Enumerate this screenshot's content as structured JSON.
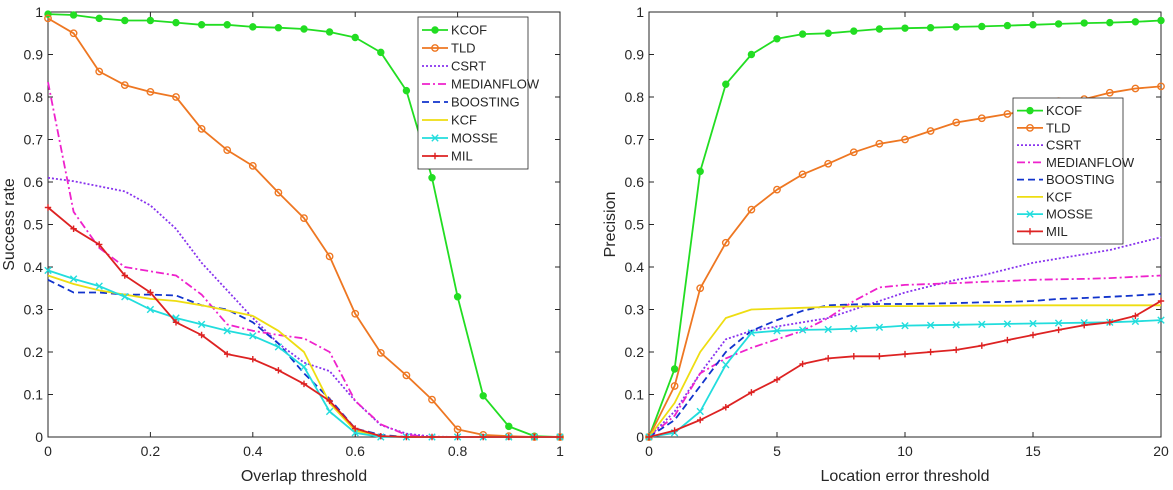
{
  "chart_data": [
    {
      "type": "line",
      "xlabel": "Overlap threshold",
      "ylabel": "Success rate",
      "xlim": [
        0,
        1
      ],
      "ylim": [
        0,
        1
      ],
      "xticks": [
        0,
        0.2,
        0.4,
        0.6,
        0.8,
        1
      ],
      "xtick_labels": [
        "0",
        "0.2",
        "0.4",
        "0.6",
        "0.8",
        "1"
      ],
      "yticks": [
        0,
        0.1,
        0.2,
        0.3,
        0.4,
        0.5,
        0.6,
        0.7,
        0.8,
        0.9,
        1
      ],
      "ytick_labels": [
        "0",
        "0.1",
        "0.2",
        "0.3",
        "0.4",
        "0.5",
        "0.6",
        "0.7",
        "0.8",
        "0.9",
        "1"
      ],
      "grid": false,
      "legend_position": "top-right",
      "x": [
        0,
        0.05,
        0.1,
        0.15,
        0.2,
        0.25,
        0.3,
        0.35,
        0.4,
        0.45,
        0.5,
        0.55,
        0.6,
        0.65,
        0.7,
        0.75,
        0.8,
        0.85,
        0.9,
        0.95,
        1
      ],
      "series": [
        {
          "name": "KCOF",
          "color": "#22dd22",
          "dash": "solid",
          "marker": "circle-filled",
          "values": [
            0.995,
            0.993,
            0.985,
            0.98,
            0.98,
            0.975,
            0.97,
            0.97,
            0.965,
            0.963,
            0.96,
            0.953,
            0.94,
            0.905,
            0.815,
            0.61,
            0.33,
            0.097,
            0.025,
            0.002,
            0
          ]
        },
        {
          "name": "TLD",
          "color": "#ee7722",
          "dash": "solid",
          "marker": "circle-open",
          "values": [
            0.985,
            0.95,
            0.86,
            0.828,
            0.812,
            0.8,
            0.725,
            0.675,
            0.638,
            0.575,
            0.515,
            0.425,
            0.29,
            0.198,
            0.145,
            0.088,
            0.018,
            0.005,
            0.002,
            0,
            0
          ]
        },
        {
          "name": "CSRT",
          "color": "#8833ee",
          "dash": "dotted",
          "marker": "none",
          "values": [
            0.61,
            0.602,
            0.59,
            0.578,
            0.545,
            0.49,
            0.41,
            0.345,
            0.28,
            0.22,
            0.175,
            0.155,
            0.085,
            0.028,
            0.008,
            0.001,
            0,
            0,
            0,
            0,
            0
          ]
        },
        {
          "name": "MEDIANFLOW",
          "color": "#ee22cc",
          "dash": "dashdot",
          "marker": "none",
          "values": [
            0.835,
            0.53,
            0.445,
            0.4,
            0.39,
            0.38,
            0.335,
            0.265,
            0.25,
            0.24,
            0.232,
            0.2,
            0.085,
            0.03,
            0.005,
            0,
            0,
            0,
            0,
            0,
            0
          ]
        },
        {
          "name": "BOOSTING",
          "color": "#1133cc",
          "dash": "dashed",
          "marker": "none",
          "values": [
            0.37,
            0.34,
            0.34,
            0.335,
            0.335,
            0.333,
            0.31,
            0.3,
            0.27,
            0.22,
            0.15,
            0.09,
            0.02,
            0.005,
            0,
            0,
            0,
            0,
            0,
            0,
            0
          ]
        },
        {
          "name": "KCF",
          "color": "#eedd11",
          "dash": "solid",
          "marker": "none",
          "values": [
            0.38,
            0.36,
            0.345,
            0.335,
            0.325,
            0.32,
            0.31,
            0.298,
            0.285,
            0.25,
            0.2,
            0.08,
            0.015,
            0.002,
            0,
            0,
            0,
            0,
            0,
            0,
            0
          ]
        },
        {
          "name": "MOSSE",
          "color": "#22dddd",
          "dash": "solid",
          "marker": "x",
          "values": [
            0.392,
            0.372,
            0.355,
            0.33,
            0.3,
            0.28,
            0.265,
            0.25,
            0.238,
            0.212,
            0.165,
            0.06,
            0.01,
            0,
            0,
            0,
            0,
            0,
            0,
            0,
            0
          ]
        },
        {
          "name": "MIL",
          "color": "#dd2222",
          "dash": "solid",
          "marker": "plus",
          "values": [
            0.54,
            0.49,
            0.453,
            0.38,
            0.34,
            0.27,
            0.24,
            0.195,
            0.183,
            0.157,
            0.125,
            0.085,
            0.02,
            0.002,
            0,
            0,
            0,
            0,
            0,
            0,
            0
          ]
        }
      ]
    },
    {
      "type": "line",
      "xlabel": "Location error threshold",
      "ylabel": "Precision",
      "xlim": [
        0,
        20
      ],
      "ylim": [
        0,
        1
      ],
      "xticks": [
        0,
        5,
        10,
        15,
        20
      ],
      "xtick_labels": [
        "0",
        "5",
        "10",
        "15",
        "20"
      ],
      "yticks": [
        0,
        0.1,
        0.2,
        0.3,
        0.4,
        0.5,
        0.6,
        0.7,
        0.8,
        0.9,
        1
      ],
      "ytick_labels": [
        "0",
        "0.1",
        "0.2",
        "0.3",
        "0.4",
        "0.5",
        "0.6",
        "0.7",
        "0.8",
        "0.9",
        "1"
      ],
      "grid": false,
      "legend_position": "center-right",
      "x": [
        0,
        1,
        2,
        3,
        4,
        5,
        6,
        7,
        8,
        9,
        10,
        11,
        12,
        13,
        14,
        15,
        16,
        17,
        18,
        19,
        20
      ],
      "series": [
        {
          "name": "KCOF",
          "color": "#22dd22",
          "dash": "solid",
          "marker": "circle-filled",
          "values": [
            0,
            0.16,
            0.625,
            0.83,
            0.9,
            0.937,
            0.948,
            0.95,
            0.955,
            0.96,
            0.962,
            0.963,
            0.965,
            0.966,
            0.968,
            0.97,
            0.972,
            0.974,
            0.975,
            0.977,
            0.98
          ]
        },
        {
          "name": "TLD",
          "color": "#ee7722",
          "dash": "solid",
          "marker": "circle-open",
          "values": [
            0,
            0.12,
            0.35,
            0.457,
            0.535,
            0.582,
            0.618,
            0.643,
            0.67,
            0.69,
            0.7,
            0.72,
            0.74,
            0.75,
            0.76,
            0.77,
            0.79,
            0.795,
            0.81,
            0.82,
            0.825
          ]
        },
        {
          "name": "CSRT",
          "color": "#8833ee",
          "dash": "dotted",
          "marker": "none",
          "values": [
            0,
            0.06,
            0.15,
            0.23,
            0.25,
            0.26,
            0.27,
            0.28,
            0.3,
            0.32,
            0.34,
            0.355,
            0.37,
            0.38,
            0.395,
            0.41,
            0.42,
            0.43,
            0.44,
            0.455,
            0.47
          ]
        },
        {
          "name": "MEDIANFLOW",
          "color": "#ee22cc",
          "dash": "dashdot",
          "marker": "none",
          "values": [
            0,
            0.05,
            0.15,
            0.185,
            0.21,
            0.23,
            0.25,
            0.28,
            0.32,
            0.352,
            0.358,
            0.36,
            0.362,
            0.365,
            0.367,
            0.37,
            0.371,
            0.372,
            0.374,
            0.377,
            0.38
          ]
        },
        {
          "name": "BOOSTING",
          "color": "#1133cc",
          "dash": "dashed",
          "marker": "none",
          "values": [
            0,
            0.04,
            0.12,
            0.2,
            0.25,
            0.275,
            0.297,
            0.31,
            0.312,
            0.313,
            0.313,
            0.314,
            0.315,
            0.317,
            0.318,
            0.32,
            0.325,
            0.327,
            0.33,
            0.333,
            0.337
          ]
        },
        {
          "name": "KCF",
          "color": "#eedd11",
          "dash": "solid",
          "marker": "none",
          "values": [
            0,
            0.08,
            0.2,
            0.28,
            0.3,
            0.302,
            0.304,
            0.306,
            0.307,
            0.308,
            0.308,
            0.308,
            0.309,
            0.309,
            0.309,
            0.31,
            0.31,
            0.31,
            0.31,
            0.31,
            0.31
          ]
        },
        {
          "name": "MOSSE",
          "color": "#22dddd",
          "dash": "solid",
          "marker": "x",
          "values": [
            0,
            0.01,
            0.06,
            0.17,
            0.245,
            0.25,
            0.252,
            0.253,
            0.255,
            0.258,
            0.262,
            0.263,
            0.264,
            0.265,
            0.266,
            0.267,
            0.268,
            0.269,
            0.27,
            0.272,
            0.275
          ]
        },
        {
          "name": "MIL",
          "color": "#dd2222",
          "dash": "solid",
          "marker": "plus",
          "values": [
            0,
            0.015,
            0.04,
            0.07,
            0.105,
            0.135,
            0.172,
            0.185,
            0.19,
            0.19,
            0.195,
            0.2,
            0.205,
            0.215,
            0.228,
            0.24,
            0.252,
            0.263,
            0.27,
            0.285,
            0.32
          ]
        }
      ]
    }
  ]
}
